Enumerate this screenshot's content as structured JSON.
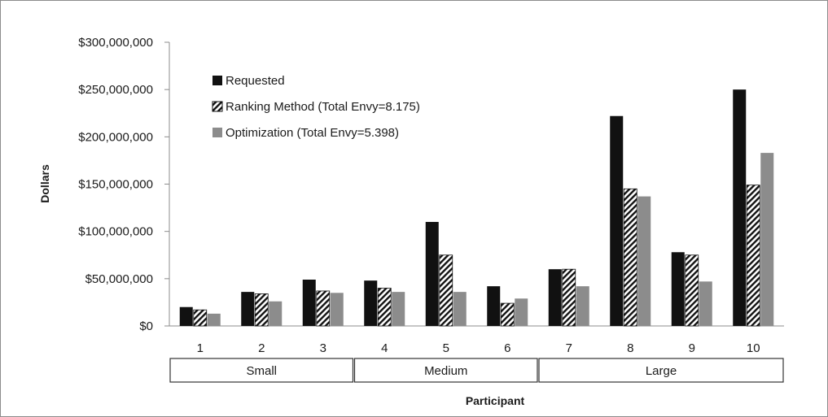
{
  "chart_data": {
    "type": "bar",
    "xlabel": "Participant",
    "ylabel": "Dollars",
    "ylim": [
      0,
      300000000
    ],
    "yticks": [
      0,
      50000000,
      100000000,
      150000000,
      200000000,
      250000000,
      300000000
    ],
    "ytick_labels": [
      "$0",
      "$50,000,000",
      "$100,000,000",
      "$150,000,000",
      "$200,000,000",
      "$250,000,000",
      "$300,000,000"
    ],
    "categories": [
      "1",
      "2",
      "3",
      "4",
      "5",
      "6",
      "7",
      "8",
      "9",
      "10"
    ],
    "groups": [
      {
        "label": "Small",
        "categories": [
          "1",
          "2",
          "3"
        ]
      },
      {
        "label": "Medium",
        "categories": [
          "4",
          "5",
          "6"
        ]
      },
      {
        "label": "Large",
        "categories": [
          "7",
          "8",
          "9",
          "10"
        ]
      }
    ],
    "series": [
      {
        "name": "Requested",
        "color": "#111111",
        "pattern": "solid",
        "values": [
          20000000,
          36000000,
          49000000,
          48000000,
          110000000,
          42000000,
          60000000,
          222000000,
          78000000,
          250000000
        ]
      },
      {
        "name": "Ranking Method (Total Envy=8.175)",
        "color": "#111111",
        "pattern": "diagonal-hatch",
        "values": [
          17000000,
          34000000,
          37000000,
          40000000,
          75000000,
          24000000,
          60000000,
          145000000,
          75000000,
          149000000
        ]
      },
      {
        "name": "Optimization (Total Envy=5.398)",
        "color": "#8c8c8c",
        "pattern": "solid",
        "values": [
          13000000,
          26000000,
          35000000,
          36000000,
          36000000,
          29000000,
          42000000,
          137000000,
          47000000,
          183000000
        ]
      }
    ],
    "grid": false,
    "legend_position": "top-left"
  }
}
